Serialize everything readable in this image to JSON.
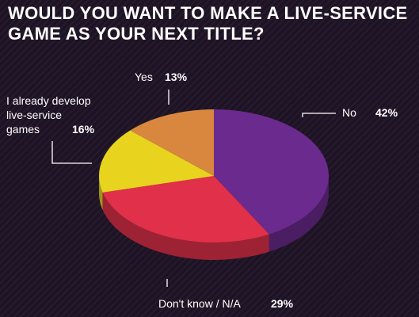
{
  "title": "WOULD YOU WANT TO MAKE A LIVE-SERVICE GAME AS YOUR NEXT TITLE?",
  "chart_data": {
    "type": "pie",
    "title": "WOULD YOU WANT TO MAKE A LIVE-SERVICE GAME AS YOUR NEXT TITLE?",
    "slices": [
      {
        "label": "No",
        "value": 42,
        "display": "42%",
        "color": "#6b2a8e"
      },
      {
        "label": "Don't know / N/A",
        "value": 29,
        "display": "29%",
        "color": "#e0304a"
      },
      {
        "label": "I already develop live-service games",
        "value": 16,
        "display": "16%",
        "color": "#e8d41e"
      },
      {
        "label": "Yes",
        "value": 13,
        "display": "13%",
        "color": "#d9873f"
      }
    ]
  }
}
